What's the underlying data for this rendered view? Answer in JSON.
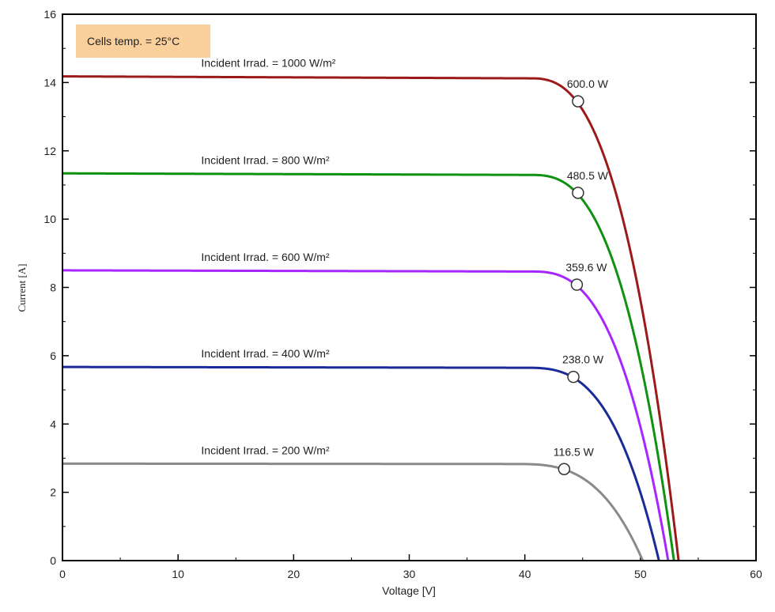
{
  "chart_data": {
    "type": "line",
    "title": "",
    "xlabel": "Voltage [V]",
    "ylabel": "Current [A]",
    "xlim": [
      0,
      60
    ],
    "ylim": [
      0,
      16
    ],
    "xticks": [
      0,
      10,
      20,
      30,
      40,
      50,
      60
    ],
    "yticks": [
      0,
      2,
      4,
      6,
      8,
      10,
      12,
      14,
      16
    ],
    "grid": false,
    "note": "Cells temp. = 25°C",
    "note_color": "#f9cf9b",
    "series": [
      {
        "name": "Incident Irrad. = 1000 W/m²",
        "color": "#9b1b1b",
        "isc": 14.18,
        "voc": 53.3,
        "knee_voltage": 40.5,
        "mpp": {
          "voltage": 44.6,
          "current": 13.45,
          "label": "600.0 W"
        }
      },
      {
        "name": "Incident Irrad. = 800 W/m²",
        "color": "#119111",
        "isc": 11.34,
        "voc": 52.9,
        "knee_voltage": 40.5,
        "mpp": {
          "voltage": 44.6,
          "current": 10.77,
          "label": "480.5 W"
        }
      },
      {
        "name": "Incident Irrad. = 600 W/m²",
        "color": "#a626ff",
        "isc": 8.5,
        "voc": 52.4,
        "knee_voltage": 40.5,
        "mpp": {
          "voltage": 44.5,
          "current": 8.08,
          "label": "359.6 W"
        }
      },
      {
        "name": "Incident Irrad. = 400 W/m²",
        "color": "#1a2a99",
        "isc": 5.67,
        "voc": 51.6,
        "knee_voltage": 40.0,
        "mpp": {
          "voltage": 44.2,
          "current": 5.38,
          "label": "238.0 W"
        }
      },
      {
        "name": "Incident Irrad. = 200 W/m²",
        "color": "#8a8a8a",
        "isc": 2.84,
        "voc": 50.2,
        "knee_voltage": 39.0,
        "mpp": {
          "voltage": 43.4,
          "current": 2.68,
          "label": "116.5 W"
        }
      }
    ]
  }
}
